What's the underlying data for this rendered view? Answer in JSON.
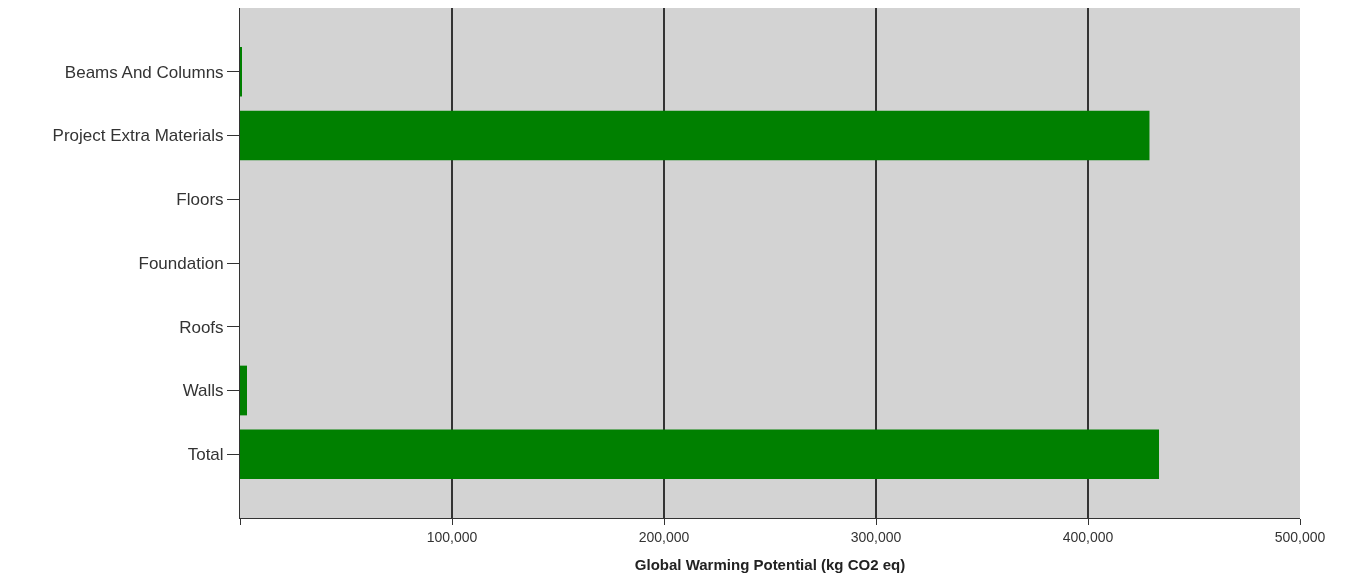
{
  "chart_data": {
    "type": "bar",
    "orientation": "horizontal",
    "xlabel": "Global Warming Potential (kg CO2 eq)",
    "categories": [
      "Beams And Columns",
      "Project Extra Materials",
      "Floors",
      "Foundation",
      "Roofs",
      "Walls",
      "Total"
    ],
    "values": [
      500,
      429000,
      0,
      0,
      0,
      3300,
      433500
    ],
    "color": "#008000",
    "xlim": [
      0,
      500000
    ],
    "xticks": [
      {
        "value": 0,
        "label": null
      },
      {
        "value": 100000,
        "label": "100,000"
      },
      {
        "value": 200000,
        "label": "200,000"
      },
      {
        "value": 300000,
        "label": "300,000"
      },
      {
        "value": 400000,
        "label": "400,000"
      },
      {
        "value": 500000,
        "label": "500,000"
      }
    ],
    "grid": "x"
  }
}
